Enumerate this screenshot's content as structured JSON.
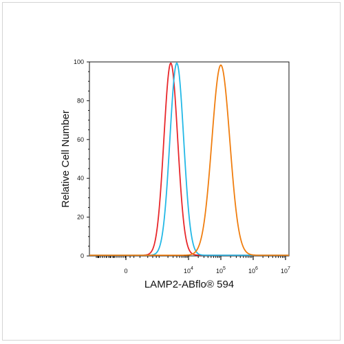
{
  "chart_data": {
    "type": "line",
    "title": "",
    "xlabel": "LAMP2-ABflo® 594",
    "ylabel": "Relative Cell Number",
    "x_scale": "biexponential",
    "x_ticks": [
      {
        "value": 0,
        "label": "0"
      },
      {
        "value": 10000,
        "label": "10",
        "exp": "4"
      },
      {
        "value": 100000,
        "label": "10",
        "exp": "5"
      },
      {
        "value": 1000000,
        "label": "10",
        "exp": "6"
      },
      {
        "value": 10000000,
        "label": "10",
        "exp": "7"
      }
    ],
    "y_ticks": [
      0,
      20,
      40,
      60,
      80,
      100
    ],
    "ylim": [
      0,
      100
    ],
    "grid": false,
    "legend": "none",
    "series": [
      {
        "color": "#e8262a",
        "peak_x": 2500,
        "peak_y": 99
      },
      {
        "color": "#22b8e6",
        "peak_x": 4000,
        "peak_y": 99
      },
      {
        "color": "#f07d0e",
        "peak_x": 100000,
        "peak_y": 98
      }
    ]
  }
}
